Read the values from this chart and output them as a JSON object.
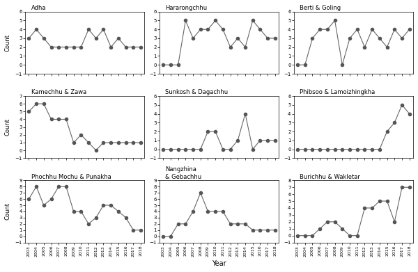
{
  "years": [
    2003,
    2004,
    2005,
    2006,
    2007,
    2008,
    2009,
    2010,
    2011,
    2012,
    2013,
    2014,
    2015,
    2016,
    2017,
    2018
  ],
  "subplots": [
    {
      "title": "Adha",
      "ylim": [
        -1,
        6
      ],
      "yticks": [
        -1,
        0,
        1,
        2,
        3,
        4,
        5,
        6
      ],
      "data": [
        3,
        4,
        3,
        2,
        2,
        2,
        2,
        2,
        4,
        3,
        4,
        2,
        3,
        2,
        2,
        2
      ]
    },
    {
      "title": "Hararongchhu",
      "ylim": [
        -1,
        6
      ],
      "yticks": [
        -1,
        0,
        1,
        2,
        3,
        4,
        5,
        6
      ],
      "data": [
        0,
        0,
        0,
        5,
        3,
        4,
        4,
        5,
        4,
        2,
        3,
        2,
        5,
        4,
        3,
        3
      ]
    },
    {
      "title": "Berti & Goling",
      "ylim": [
        -1,
        6
      ],
      "yticks": [
        -1,
        0,
        1,
        2,
        3,
        4,
        5,
        6
      ],
      "data": [
        0,
        0,
        3,
        4,
        4,
        5,
        0,
        3,
        4,
        2,
        4,
        3,
        2,
        4,
        3,
        4
      ]
    },
    {
      "title": "Kamechhu & Zawa",
      "ylim": [
        -1,
        7
      ],
      "yticks": [
        -1,
        0,
        1,
        2,
        3,
        4,
        5,
        6,
        7
      ],
      "data": [
        5,
        6,
        6,
        4,
        4,
        4,
        1,
        2,
        1,
        0,
        1,
        1,
        1,
        1,
        1,
        1
      ]
    },
    {
      "title": "Sunkosh & Dagachhu",
      "ylim": [
        -1,
        6
      ],
      "yticks": [
        -1,
        0,
        1,
        2,
        3,
        4,
        5,
        6
      ],
      "data": [
        0,
        0,
        0,
        0,
        0,
        0,
        2,
        2,
        0,
        0,
        1,
        4,
        0,
        1,
        1,
        1
      ]
    },
    {
      "title": "Phibsoo & Lamoizhingkha",
      "ylim": [
        -1,
        6
      ],
      "yticks": [
        -1,
        0,
        1,
        2,
        3,
        4,
        5,
        6
      ],
      "data": [
        0,
        0,
        0,
        0,
        0,
        0,
        0,
        0,
        0,
        0,
        0,
        0,
        2,
        3,
        5,
        4
      ]
    },
    {
      "title": "Phochhu Mochu & Punakha",
      "ylim": [
        -1,
        9
      ],
      "yticks": [
        -1,
        0,
        1,
        2,
        3,
        4,
        5,
        6,
        7,
        8,
        9
      ],
      "data": [
        6,
        8,
        5,
        6,
        8,
        8,
        4,
        4,
        2,
        3,
        5,
        5,
        4,
        3,
        1,
        1
      ]
    },
    {
      "title": "Nangzhina\n& Gebachhu",
      "ylim": [
        -1,
        9
      ],
      "yticks": [
        -1,
        0,
        1,
        2,
        3,
        4,
        5,
        6,
        7,
        8,
        9
      ],
      "data": [
        0,
        0,
        2,
        2,
        4,
        7,
        4,
        4,
        4,
        2,
        2,
        2,
        1,
        1,
        1,
        1
      ]
    },
    {
      "title": "Burichhu & Wakletar",
      "ylim": [
        -1,
        8
      ],
      "yticks": [
        -1,
        0,
        1,
        2,
        3,
        4,
        5,
        6,
        7,
        8
      ],
      "data": [
        0,
        0,
        0,
        1,
        2,
        2,
        1,
        0,
        0,
        4,
        4,
        5,
        5,
        2,
        7,
        7
      ]
    }
  ],
  "line_color": "#666666",
  "marker_color": "#555555",
  "marker_size": 3,
  "marker": "o",
  "xlabel": "Year",
  "ylabel": "Count",
  "figsize": [
    6.0,
    3.91
  ],
  "dpi": 100
}
